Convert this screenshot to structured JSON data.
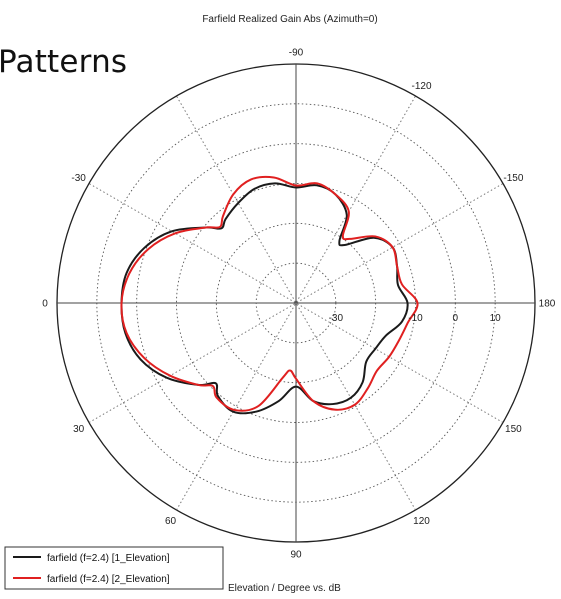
{
  "slide_title": "Patterns",
  "chart_data": {
    "type": "polar",
    "title": "Farfield Realized Gain Abs (Azimuth=0)",
    "footer": "Elevation / Degree vs. dB",
    "angle_labels": [
      {
        "text": "-90",
        "angle": -90
      },
      {
        "text": "-120",
        "angle": -120
      },
      {
        "text": "-150",
        "angle": -150
      },
      {
        "text": "180",
        "angle": 180
      },
      {
        "text": "150",
        "angle": 150
      },
      {
        "text": "120",
        "angle": 120
      },
      {
        "text": "90",
        "angle": 90
      },
      {
        "text": "60",
        "angle": 60
      },
      {
        "text": "30",
        "angle": 30
      },
      {
        "text": "0",
        "angle": 0
      },
      {
        "text": "-30",
        "angle": -30
      }
    ],
    "radial_ticks": [
      {
        "text": "-30",
        "value": -30
      },
      {
        "text": "-10",
        "value": -10
      },
      {
        "text": "0",
        "value": 0
      },
      {
        "text": "10",
        "value": 10
      }
    ],
    "rlim": [
      -40,
      20
    ],
    "grid_step_db": 10,
    "spoke_step_deg": 30,
    "series": [
      {
        "name": "farfield (f=2.4) [1_Elevation]",
        "color": "#1a1a1a",
        "points": [
          [
            0,
            3.8
          ],
          [
            10,
            3.5
          ],
          [
            20,
            1.5
          ],
          [
            30,
            -2.5
          ],
          [
            40,
            -8
          ],
          [
            45,
            -11.5
          ],
          [
            50,
            -9.5
          ],
          [
            60,
            -8.5
          ],
          [
            70,
            -11
          ],
          [
            80,
            -15
          ],
          [
            90,
            -19
          ],
          [
            100,
            -15
          ],
          [
            110,
            -13
          ],
          [
            120,
            -12.5
          ],
          [
            130,
            -14
          ],
          [
            140,
            -17
          ],
          [
            150,
            -17
          ],
          [
            160,
            -16
          ],
          [
            170,
            -13
          ],
          [
            180,
            -12
          ],
          [
            190,
            -14
          ],
          [
            200,
            -13
          ],
          [
            210,
            -12
          ],
          [
            220,
            -14.5
          ],
          [
            230,
            -21
          ],
          [
            235,
            -21
          ],
          [
            240,
            -14.5
          ],
          [
            250,
            -11
          ],
          [
            260,
            -10
          ],
          [
            270,
            -11
          ],
          [
            280,
            -9.5
          ],
          [
            290,
            -9.5
          ],
          [
            300,
            -11
          ],
          [
            310,
            -12.5
          ],
          [
            315,
            -13.5
          ],
          [
            320,
            -10.5
          ],
          [
            330,
            -4
          ],
          [
            340,
            0.5
          ],
          [
            350,
            3.2
          ]
        ]
      },
      {
        "name": "farfield (f=2.4) [2_Elevation]",
        "color": "#e02020",
        "points": [
          [
            0,
            3.8
          ],
          [
            10,
            3.2
          ],
          [
            20,
            0.5
          ],
          [
            30,
            -3.5
          ],
          [
            40,
            -8
          ],
          [
            45,
            -10.5
          ],
          [
            50,
            -9
          ],
          [
            60,
            -9
          ],
          [
            70,
            -12.5
          ],
          [
            80,
            -21
          ],
          [
            85,
            -23
          ],
          [
            90,
            -21
          ],
          [
            100,
            -15
          ],
          [
            110,
            -11.5
          ],
          [
            120,
            -10.5
          ],
          [
            130,
            -12
          ],
          [
            140,
            -13.5
          ],
          [
            150,
            -13
          ],
          [
            160,
            -12.5
          ],
          [
            170,
            -11.5
          ],
          [
            180,
            -9.5
          ],
          [
            190,
            -13
          ],
          [
            200,
            -13
          ],
          [
            210,
            -12
          ],
          [
            220,
            -14
          ],
          [
            230,
            -19
          ],
          [
            235,
            -19.5
          ],
          [
            240,
            -13.5
          ],
          [
            250,
            -11
          ],
          [
            260,
            -9.5
          ],
          [
            270,
            -10.5
          ],
          [
            280,
            -8
          ],
          [
            290,
            -7
          ],
          [
            300,
            -8.5
          ],
          [
            310,
            -11.5
          ],
          [
            315,
            -13
          ],
          [
            320,
            -10.5
          ],
          [
            330,
            -5
          ],
          [
            340,
            -0.5
          ],
          [
            350,
            2.5
          ]
        ]
      }
    ]
  }
}
